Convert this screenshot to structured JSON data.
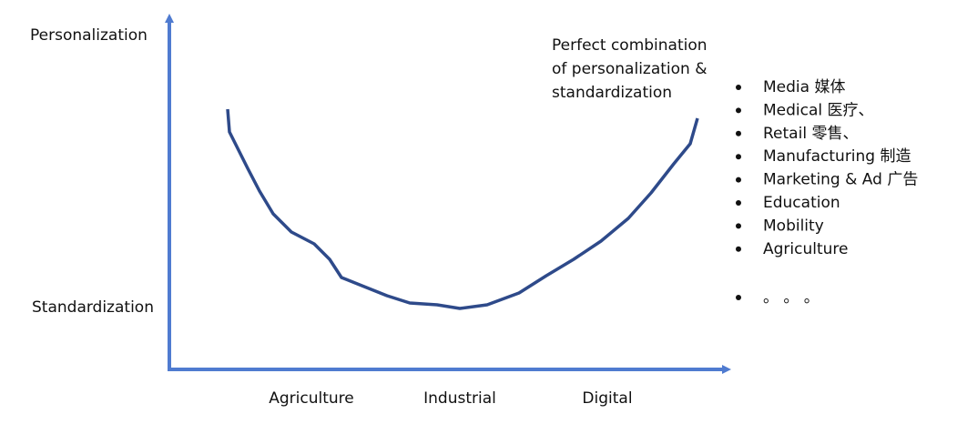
{
  "axis": {
    "y_top_label": "Personalization",
    "y_bottom_label": "Standardization",
    "x_labels": [
      "Agriculture",
      "Industrial",
      "Digital"
    ]
  },
  "annotation": {
    "lines": [
      "Perfect combination",
      "of personalization &",
      "standardization"
    ]
  },
  "list": {
    "items": [
      "Media 媒体",
      "Medical 医疗、",
      "Retail 零售、",
      "Manufacturing 制造",
      "Marketing & Ad 广告",
      "Education",
      "Mobility",
      "Agriculture",
      "。 。 。"
    ]
  }
}
